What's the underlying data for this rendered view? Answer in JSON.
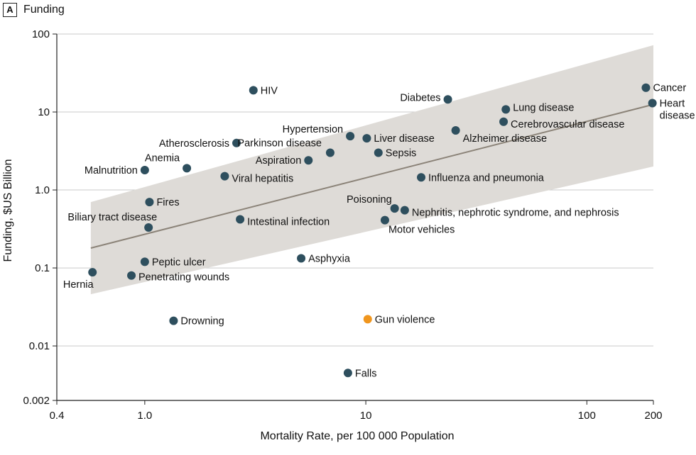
{
  "panel": {
    "letter": "A",
    "title": "Funding"
  },
  "chart_data": {
    "type": "scatter",
    "xlabel": "Mortality Rate, per 100 000 Population",
    "ylabel": "Funding, $US Billion",
    "x_scale": "log",
    "y_scale": "log",
    "xlim": [
      0.4,
      200
    ],
    "ylim": [
      0.002,
      100
    ],
    "x_ticks": [
      0.4,
      1.0,
      10,
      100,
      200
    ],
    "x_tick_labels": [
      "0.4",
      "1.0",
      "10",
      "100",
      "200"
    ],
    "y_ticks": [
      0.002,
      0.01,
      0.1,
      1.0,
      10,
      100
    ],
    "y_tick_labels": [
      "0.002",
      "0.01",
      "0.1",
      "1.0",
      "10",
      "100"
    ],
    "grid": "horizontal",
    "colors": {
      "point": "#2e4f5e",
      "highlight": "#f0961e",
      "fit_line": "#8b8378",
      "band": "#dedbd7"
    },
    "fit_line": {
      "x": [
        0.57,
        200
      ],
      "y": [
        0.18,
        12.5
      ]
    },
    "confidence_band": {
      "x": [
        0.57,
        200
      ],
      "lower": [
        0.046,
        2.0
      ],
      "upper": [
        0.7,
        72
      ]
    },
    "points": [
      {
        "label": "Cancer",
        "x": 185,
        "y": 20.5
      },
      {
        "label": "Heart disease",
        "x": 198,
        "y": 13
      },
      {
        "label": "Lung disease",
        "x": 43,
        "y": 10.8
      },
      {
        "label": "Cerebrovascular disease",
        "x": 42,
        "y": 7.5
      },
      {
        "label": "Alzheimer disease",
        "x": 25.5,
        "y": 5.8
      },
      {
        "label": "Diabetes",
        "x": 23.5,
        "y": 14.5
      },
      {
        "label": "Influenza and pneumonia",
        "x": 17.8,
        "y": 1.45
      },
      {
        "label": "Sepsis",
        "x": 11.4,
        "y": 3.0
      },
      {
        "label": "Liver disease",
        "x": 10.1,
        "y": 4.6
      },
      {
        "label": "Hypertension",
        "x": 8.5,
        "y": 4.9
      },
      {
        "label": "Parkinson disease",
        "x": 6.9,
        "y": 3.0
      },
      {
        "label": "Aspiration",
        "x": 5.5,
        "y": 2.4
      },
      {
        "label": "HIV",
        "x": 3.1,
        "y": 19
      },
      {
        "label": "Atherosclerosis",
        "x": 2.6,
        "y": 4.0
      },
      {
        "label": "Viral hepatitis",
        "x": 2.3,
        "y": 1.5
      },
      {
        "label": "Anemia",
        "x": 1.55,
        "y": 1.9
      },
      {
        "label": "Malnutrition",
        "x": 1.0,
        "y": 1.8
      },
      {
        "label": "Fires",
        "x": 1.05,
        "y": 0.7
      },
      {
        "label": "Biliary tract disease",
        "x": 1.04,
        "y": 0.33
      },
      {
        "label": "Intestinal infection",
        "x": 2.7,
        "y": 0.42
      },
      {
        "label": "Poisoning",
        "x": 13.5,
        "y": 0.58
      },
      {
        "label": "Nephritis, nephrotic syndrome, and nephrosis",
        "x": 15,
        "y": 0.55
      },
      {
        "label": "Motor vehicles",
        "x": 12.2,
        "y": 0.41
      },
      {
        "label": "Asphyxia",
        "x": 5.1,
        "y": 0.133
      },
      {
        "label": "Peptic ulcer",
        "x": 1.0,
        "y": 0.12
      },
      {
        "label": "Penetrating wounds",
        "x": 0.87,
        "y": 0.08
      },
      {
        "label": "Hernia",
        "x": 0.58,
        "y": 0.088
      },
      {
        "label": "Drowning",
        "x": 1.35,
        "y": 0.021
      },
      {
        "label": "Gun violence",
        "x": 10.2,
        "y": 0.022,
        "highlight": true
      },
      {
        "label": "Falls",
        "x": 8.3,
        "y": 0.0045
      }
    ]
  }
}
